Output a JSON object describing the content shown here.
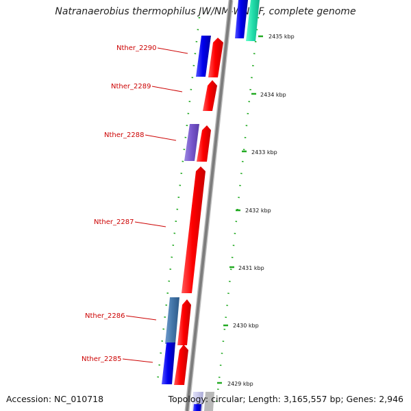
{
  "title": "Natranaerobius thermophilus JW/NM-WN-LF, complete genome",
  "footer": {
    "accession": "Accession: NC_010718",
    "topology": "Topology: circular; Length: 3,165,557 bp; Genes: 2,946"
  },
  "colors": {
    "backbone": "#8a8a8a",
    "dots": "#22aa22",
    "label_text": "#cc0000",
    "cds_forward_red": "#ff0000",
    "cds_reverse_blue": "#0000ee",
    "cds_reverse_purple": "#7755cc",
    "cds_reverse_steel": "#4477aa",
    "cds_reverse_teal": "#22ddaa",
    "cds_lavender": "#ccccee"
  },
  "scale": {
    "unit": "kbp",
    "ticks": [
      {
        "kbp": 2435,
        "label": "2435 kbp"
      },
      {
        "kbp": 2434,
        "label": "2434 kbp"
      },
      {
        "kbp": 2433,
        "label": "2433 kbp"
      },
      {
        "kbp": 2432,
        "label": "2432 kbp"
      },
      {
        "kbp": 2431,
        "label": "2431 kbp"
      },
      {
        "kbp": 2430,
        "label": "2430 kbp"
      },
      {
        "kbp": 2429,
        "label": "2429 kbp"
      }
    ]
  },
  "genes": [
    {
      "label": "Nther_2290"
    },
    {
      "label": "Nther_2289"
    },
    {
      "label": "Nther_2288"
    },
    {
      "label": "Nther_2287"
    },
    {
      "label": "Nther_2286"
    },
    {
      "label": "Nther_2285"
    }
  ]
}
